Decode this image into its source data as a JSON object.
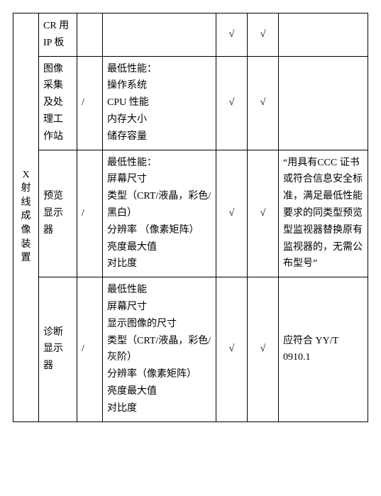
{
  "table": {
    "row_header": "X 射线成像装置",
    "rows": [
      {
        "name": "CR 用IP 板",
        "c2": "",
        "spec": "",
        "m1": "√",
        "m2": "√",
        "note": ""
      },
      {
        "name": "图像采集及处理工作站",
        "c2": "/",
        "spec": "最低性能：\n操作系统\nCPU 性能\n内存大小\n储存容量",
        "m1": "√",
        "m2": "√",
        "note": ""
      },
      {
        "name": "预览显示器",
        "c2": "/",
        "spec": "最低性能：\n屏幕尺寸\n类型（CRT/液晶，彩色/黑白）\n分辨率 （像素矩阵）\n亮度最大值\n对比度",
        "m1": "√",
        "m2": "√",
        "note": "“用具有CCC 证书或符合信息安全标准，满足最低性能要求的同类型预览型监视器替换原有监视器的，无需公布型号”"
      },
      {
        "name": "诊断显示器",
        "c2": "/",
        "spec": "最低性能\n屏幕尺寸\n显示图像的尺寸\n类型（CRT/液晶，彩色/灰阶）\n分辨率（像素矩阵）\n亮度最大值\n对比度",
        "m1": "√",
        "m2": "√",
        "note": "应符合 YY/T 0910.1"
      }
    ]
  }
}
